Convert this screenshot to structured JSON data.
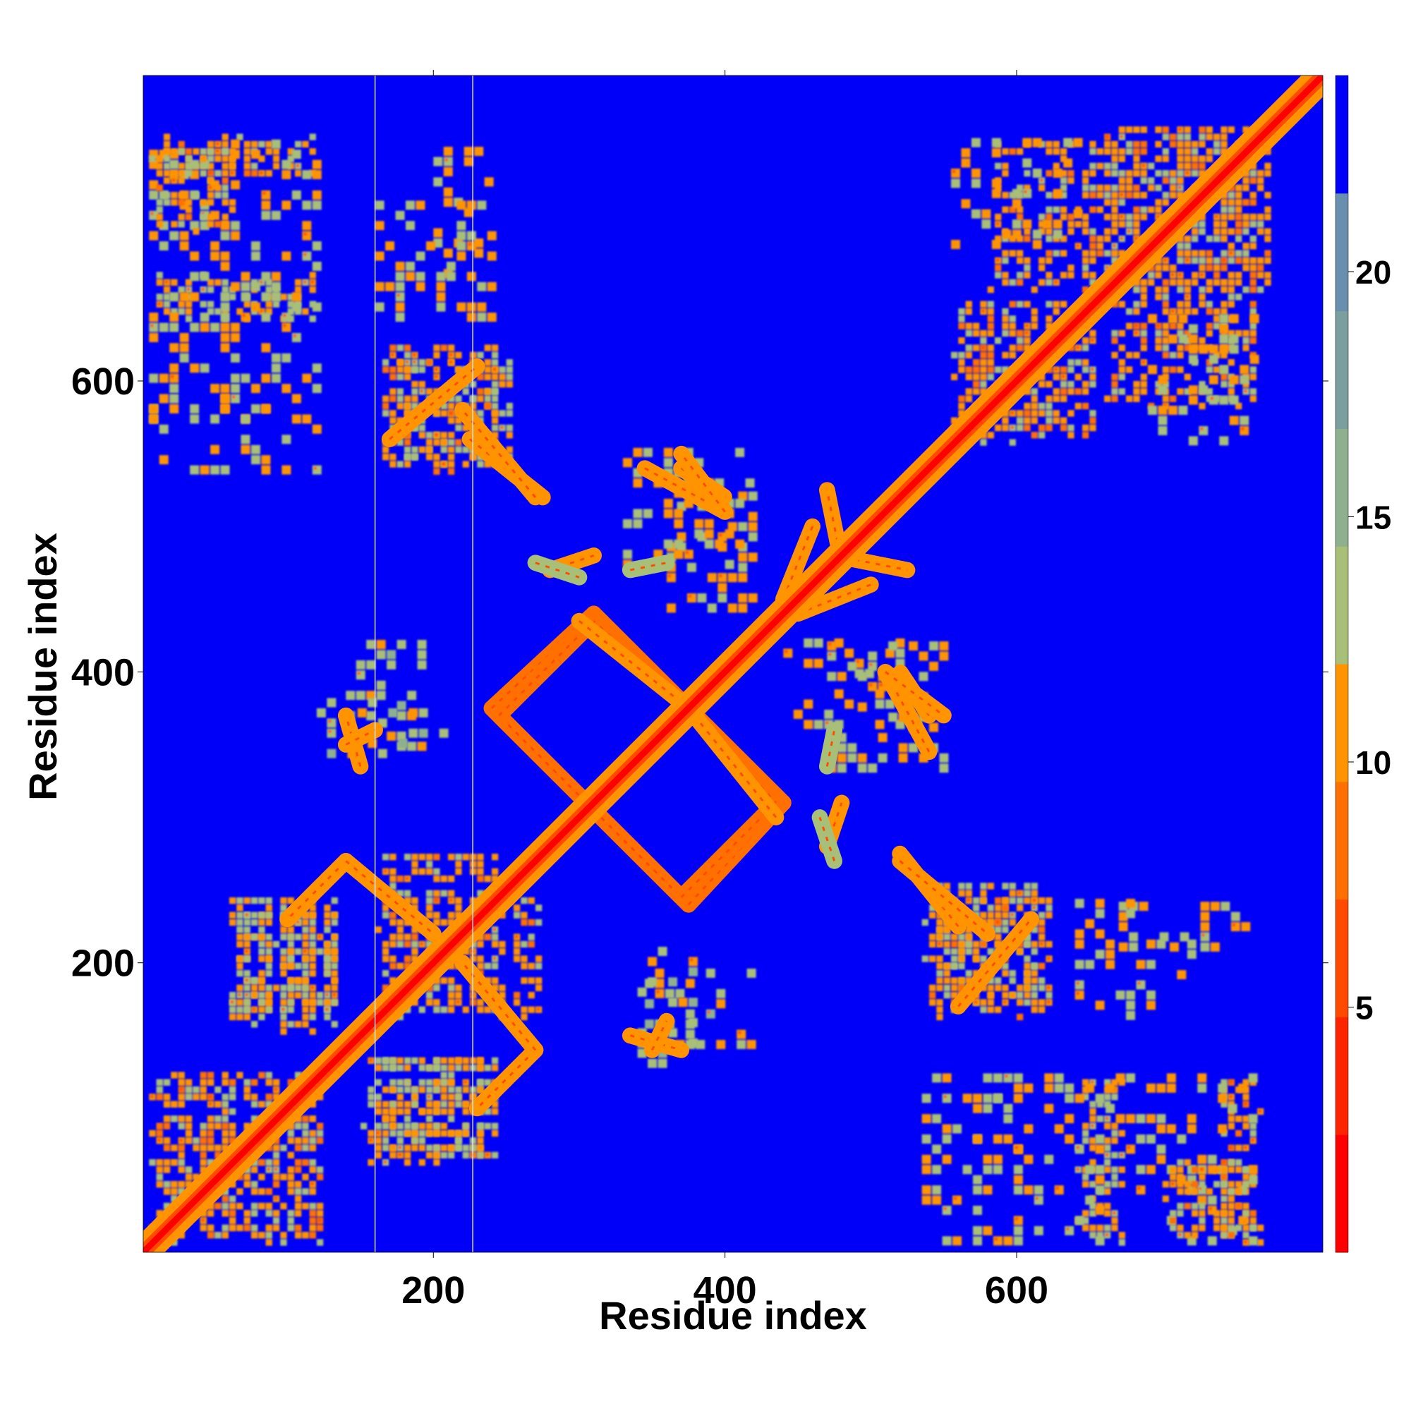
{
  "chart_data": {
    "type": "heatmap",
    "title": "",
    "xlabel": "Residue index",
    "ylabel": "Residue index",
    "xlim": [
      1,
      810
    ],
    "ylim": [
      1,
      810
    ],
    "x_ticks": [
      200,
      400,
      600
    ],
    "y_ticks": [
      200,
      400,
      600
    ],
    "colorbar": {
      "min": 0,
      "max": 24,
      "ticks": [
        5,
        10,
        15,
        20
      ],
      "colors": [
        "#ff0000",
        "#ff2400",
        "#ff4a00",
        "#ff7000",
        "#ff9400",
        "#a8bf78",
        "#8fb08e",
        "#7a9f9e",
        "#6a8fae",
        "#0000f8"
      ]
    },
    "background_value": 24,
    "diagonal": {
      "band_width_residues": 8,
      "core_value": 2
    },
    "gap_lines_x": [
      160,
      227
    ],
    "contact_blocks": [
      {
        "x": [
          5,
          115
        ],
        "y": [
          5,
          120
        ],
        "value": 11,
        "pattern": "lattice"
      },
      {
        "x": [
          5,
          115
        ],
        "y": [
          735,
          765
        ],
        "value": 11,
        "pattern": "lattice"
      },
      {
        "x": [
          5,
          115
        ],
        "y": [
          640,
          670
        ],
        "value": 12,
        "pattern": "lattice"
      },
      {
        "x": [
          5,
          115
        ],
        "y": [
          570,
          600
        ],
        "value": 12,
        "pattern": "sparse"
      },
      {
        "x": [
          660,
          760
        ],
        "y": [
          580,
          770
        ],
        "value": 11,
        "pattern": "lattice"
      },
      {
        "x": [
          555,
          630
        ],
        "y": [
          565,
          650
        ],
        "value": 11,
        "pattern": "lattice"
      },
      {
        "x": [
          555,
          640
        ],
        "y": [
          690,
          760
        ],
        "value": 12,
        "pattern": "sparse"
      },
      {
        "x": [
          160,
          270
        ],
        "y": [
          160,
          240
        ],
        "value": 11,
        "pattern": "lattice"
      },
      {
        "x": [
          60,
          130
        ],
        "y": [
          160,
          240
        ],
        "value": 12,
        "pattern": "lattice"
      },
      {
        "x": [
          150,
          230
        ],
        "y": [
          60,
          130
        ],
        "value": 12,
        "pattern": "lattice"
      },
      {
        "x": [
          170,
          250
        ],
        "y": [
          540,
          610
        ],
        "value": 12,
        "pattern": "lattice"
      },
      {
        "x": [
          200,
          235
        ],
        "y": [
          670,
          760
        ],
        "value": 12,
        "pattern": "sparse"
      },
      {
        "x": [
          535,
          620
        ],
        "y": [
          160,
          240
        ],
        "value": 11,
        "pattern": "lattice"
      },
      {
        "x": [
          535,
          760
        ],
        "y": [
          5,
          120
        ],
        "value": 12,
        "pattern": "sparse"
      },
      {
        "x": [
          700,
          760
        ],
        "y": [
          5,
          60
        ],
        "value": 11,
        "pattern": "lattice"
      },
      {
        "x": [
          640,
          720
        ],
        "y": [
          160,
          240
        ],
        "value": 12,
        "pattern": "sparse"
      },
      {
        "x": [
          345,
          420
        ],
        "y": [
          140,
          190
        ],
        "value": 13,
        "pattern": "sparse"
      },
      {
        "x": [
          120,
          210
        ],
        "y": [
          340,
          380
        ],
        "value": 13,
        "pattern": "sparse"
      },
      {
        "x": [
          440,
          520
        ],
        "y": [
          360,
          420
        ],
        "value": 12,
        "pattern": "sparse"
      },
      {
        "x": [
          330,
          420
        ],
        "y": [
          470,
          550
        ],
        "value": 12,
        "pattern": "sparse"
      }
    ],
    "contact_lines": [
      {
        "from": [
          240,
          375
        ],
        "to": [
          305,
          310
        ],
        "value": 9
      },
      {
        "from": [
          240,
          375
        ],
        "to": [
          310,
          440
        ],
        "value": 9
      },
      {
        "from": [
          310,
          440
        ],
        "to": [
          375,
          375
        ],
        "value": 9
      },
      {
        "from": [
          305,
          310
        ],
        "to": [
          370,
          245
        ],
        "value": 9
      },
      {
        "from": [
          370,
          245
        ],
        "to": [
          435,
          310
        ],
        "value": 9
      },
      {
        "from": [
          375,
          375
        ],
        "to": [
          435,
          310
        ],
        "value": 9
      },
      {
        "from": [
          375,
          375
        ],
        "to": [
          435,
          440
        ],
        "value": 9
      },
      {
        "from": [
          300,
          435
        ],
        "to": [
          375,
          375
        ],
        "value": 10
      },
      {
        "from": [
          140,
          270
        ],
        "to": [
          100,
          230
        ],
        "value": 10
      },
      {
        "from": [
          140,
          270
        ],
        "to": [
          200,
          220
        ],
        "value": 10
      },
      {
        "from": [
          225,
          560
        ],
        "to": [
          275,
          520
        ],
        "value": 10
      },
      {
        "from": [
          170,
          560
        ],
        "to": [
          230,
          610
        ],
        "value": 10
      },
      {
        "from": [
          345,
          540
        ],
        "to": [
          400,
          510
        ],
        "value": 10
      },
      {
        "from": [
          370,
          540
        ],
        "to": [
          400,
          520
        ],
        "value": 10
      },
      {
        "from": [
          520,
          270
        ],
        "to": [
          580,
          220
        ],
        "value": 10
      },
      {
        "from": [
          510,
          400
        ],
        "to": [
          550,
          370
        ],
        "value": 10
      },
      {
        "from": [
          450,
          440
        ],
        "to": [
          500,
          460
        ],
        "value": 11
      },
      {
        "from": [
          335,
          150
        ],
        "to": [
          370,
          140
        ],
        "value": 11
      },
      {
        "from": [
          140,
          350
        ],
        "to": [
          160,
          360
        ],
        "value": 11
      },
      {
        "from": [
          470,
          280
        ],
        "to": [
          480,
          310
        ],
        "value": 11
      },
      {
        "from": [
          475,
          480
        ],
        "to": [
          525,
          470
        ],
        "value": 11
      },
      {
        "from": [
          270,
          475
        ],
        "to": [
          300,
          465
        ],
        "value": 12
      },
      {
        "from": [
          335,
          470
        ],
        "to": [
          360,
          475
        ],
        "value": 12
      }
    ]
  }
}
